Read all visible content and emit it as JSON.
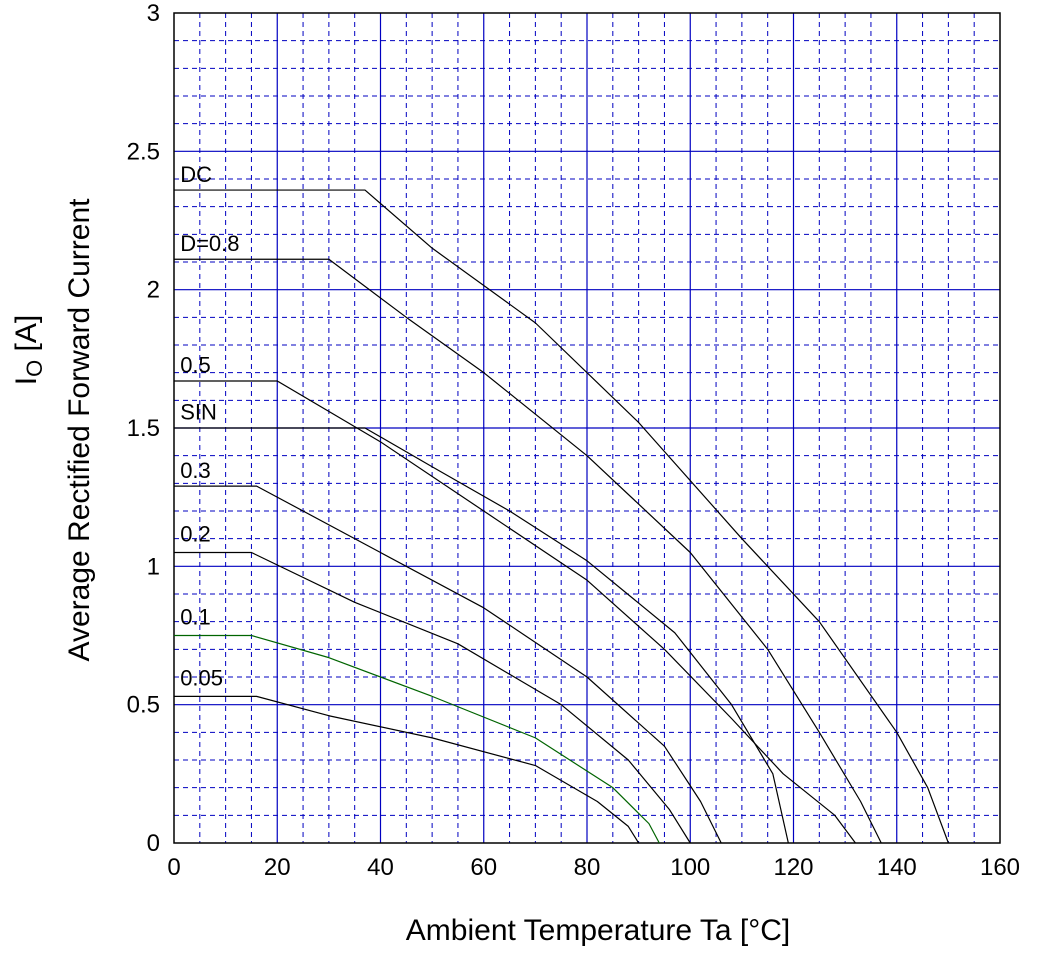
{
  "chart_data": {
    "type": "line",
    "title": "",
    "xlabel": "Ambient Temperature    Ta  [°C]",
    "ylabel_main": "Average Rectified Forward Current",
    "ylabel_symbol": "I",
    "ylabel_subscript": "O",
    "ylabel_unit": "[A]",
    "xlim": [
      0,
      160
    ],
    "ylim": [
      0,
      3
    ],
    "x_ticks": [
      0,
      20,
      40,
      60,
      80,
      100,
      120,
      140,
      160
    ],
    "y_ticks": [
      0,
      0.5,
      1,
      1.5,
      2,
      2.5,
      3
    ],
    "x_tick_labels": [
      "0",
      "20",
      "40",
      "60",
      "80",
      "100",
      "120",
      "140",
      "160"
    ],
    "y_tick_labels": [
      "0",
      "0.5",
      "1",
      "1.5",
      "2",
      "2.5",
      "3"
    ],
    "grid": {
      "major": true,
      "minor": true,
      "major_color": "#0000c0",
      "minor_color": "#0000c0",
      "minor_dashed": true
    },
    "series": [
      {
        "name": "DC",
        "color": "#000000",
        "points": [
          [
            0,
            2.36
          ],
          [
            37,
            2.36
          ],
          [
            50,
            2.15
          ],
          [
            70,
            1.88
          ],
          [
            90,
            1.52
          ],
          [
            110,
            1.1
          ],
          [
            125,
            0.8
          ],
          [
            140,
            0.4
          ],
          [
            146,
            0.2
          ],
          [
            150,
            0
          ]
        ]
      },
      {
        "name": "D=0.8",
        "color": "#000000",
        "points": [
          [
            0,
            2.11
          ],
          [
            30,
            2.11
          ],
          [
            45,
            1.9
          ],
          [
            60,
            1.7
          ],
          [
            80,
            1.4
          ],
          [
            100,
            1.05
          ],
          [
            115,
            0.7
          ],
          [
            125,
            0.4
          ],
          [
            133,
            0.15
          ],
          [
            137,
            0
          ]
        ]
      },
      {
        "name": "0.5",
        "color": "#000000",
        "points": [
          [
            0,
            1.67
          ],
          [
            20,
            1.67
          ],
          [
            40,
            1.45
          ],
          [
            60,
            1.2
          ],
          [
            80,
            0.95
          ],
          [
            95,
            0.7
          ],
          [
            108,
            0.45
          ],
          [
            118,
            0.25
          ],
          [
            128,
            0.1
          ],
          [
            132,
            0
          ]
        ]
      },
      {
        "name": "SIN",
        "color": "#000000",
        "points": [
          [
            0,
            1.5
          ],
          [
            37,
            1.5
          ],
          [
            50,
            1.36
          ],
          [
            65,
            1.2
          ],
          [
            80,
            1.02
          ],
          [
            97,
            0.76
          ],
          [
            108,
            0.5
          ],
          [
            116,
            0.25
          ],
          [
            119,
            0
          ]
        ]
      },
      {
        "name": "0.3",
        "color": "#000000",
        "points": [
          [
            0,
            1.29
          ],
          [
            16,
            1.29
          ],
          [
            40,
            1.05
          ],
          [
            60,
            0.85
          ],
          [
            80,
            0.6
          ],
          [
            95,
            0.35
          ],
          [
            102,
            0.15
          ],
          [
            106,
            0
          ]
        ]
      },
      {
        "name": "0.2",
        "color": "#000000",
        "points": [
          [
            0,
            1.05
          ],
          [
            15,
            1.05
          ],
          [
            35,
            0.87
          ],
          [
            55,
            0.72
          ],
          [
            75,
            0.5
          ],
          [
            88,
            0.3
          ],
          [
            96,
            0.12
          ],
          [
            100,
            0
          ]
        ]
      },
      {
        "name": "0.1",
        "color": "#006400",
        "points": [
          [
            0,
            0.75
          ],
          [
            15,
            0.75
          ],
          [
            30,
            0.67
          ],
          [
            50,
            0.53
          ],
          [
            70,
            0.38
          ],
          [
            85,
            0.2
          ],
          [
            92,
            0.07
          ],
          [
            94,
            0
          ]
        ]
      },
      {
        "name": "0.05",
        "color": "#000000",
        "points": [
          [
            0,
            0.53
          ],
          [
            16,
            0.53
          ],
          [
            30,
            0.46
          ],
          [
            50,
            0.38
          ],
          [
            70,
            0.28
          ],
          [
            82,
            0.15
          ],
          [
            88,
            0.06
          ],
          [
            90,
            0
          ]
        ]
      }
    ],
    "curve_labels": [
      {
        "text": "DC",
        "x": 1.2,
        "y": 2.39
      },
      {
        "text": "D=0.8",
        "x": 1.2,
        "y": 2.14
      },
      {
        "text": "0.5",
        "x": 1.2,
        "y": 1.7
      },
      {
        "text": "SIN",
        "x": 1.2,
        "y": 1.53
      },
      {
        "text": "0.3",
        "x": 1.2,
        "y": 1.32
      },
      {
        "text": "0.2",
        "x": 1.2,
        "y": 1.09
      },
      {
        "text": "0.1",
        "x": 1.2,
        "y": 0.79
      },
      {
        "text": "0.05",
        "x": 1.2,
        "y": 0.57
      }
    ]
  }
}
